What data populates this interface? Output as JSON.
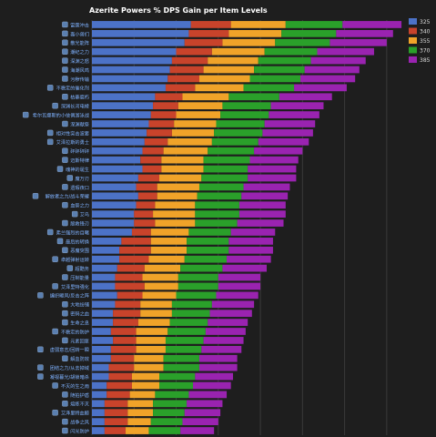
{
  "chart_data": {
    "type": "bar",
    "orientation": "horizontal",
    "stacked": true,
    "title": "Azerite Powers % DPS Gain per Item Levels",
    "xlabel": "",
    "ylabel": "",
    "grid": true,
    "legend_position": "top-right",
    "xlim": [
      0,
      7.5
    ],
    "categories": [
      "雷霆冲击",
      "轰小兽们",
      "散光能阵",
      "潮纪之力",
      "深渊之怒",
      "海潮风鸣",
      "污秽传输",
      "不稳定的催化剂",
      "枯萎腐朽",
      "深渊长河电棱",
      "希尔瓦娜斯的小伎俩游泳战",
      "深渊献祭",
      "相对性突击波套",
      "艾泽拉斯的勇士",
      "砰砰砰砰",
      "迈斯特律",
      "魂神的诞生",
      "魔万刃",
      "遗瑕夜口",
      "解放者之力/战斗荣耀",
      "血祭之力",
      "艾鸟",
      "殷救锋刃",
      "弗兰强烈的目睹",
      "最后的转换",
      "恶魔突围",
      "卓越弹射运转",
      "超酷务",
      "压制能量",
      "艾泽里特强化",
      "编织暖风/反击之阵",
      "大地纷铺",
      "密码之血",
      "生命之息",
      "不稳定的防护",
      "元素回复",
      "虚弱意志/回转一瞬",
      "解血防效",
      "团结之力/从去掉域",
      "凝视暮光/胡锁暗杀",
      "不灭的生之雨",
      "随拍护盾",
      "熔炼不灭",
      "艾泽里特血鲸",
      "战争之风",
      "闪光防护"
    ],
    "series": [
      {
        "name": "325",
        "color": "#4c72c7",
        "values": [
          2.35,
          2.3,
          2.2,
          2.0,
          1.9,
          1.85,
          1.8,
          1.75,
          1.5,
          1.45,
          1.4,
          1.35,
          1.3,
          1.25,
          1.2,
          1.15,
          1.2,
          1.1,
          1.05,
          1.1,
          1.05,
          1.0,
          1.0,
          0.95,
          0.7,
          0.65,
          0.65,
          0.6,
          0.55,
          0.55,
          0.6,
          0.55,
          0.5,
          0.5,
          0.45,
          0.5,
          0.45,
          0.45,
          0.4,
          0.4,
          0.35,
          0.35,
          0.3,
          0.3,
          0.3,
          0.3
        ]
      },
      {
        "name": "340",
        "color": "#c8432b",
        "values": [
          0.95,
          0.95,
          0.9,
          0.85,
          0.85,
          0.8,
          0.75,
          0.7,
          0.65,
          0.6,
          0.6,
          0.6,
          0.6,
          0.55,
          0.5,
          0.5,
          0.45,
          0.5,
          0.5,
          0.45,
          0.45,
          0.45,
          0.5,
          0.45,
          0.7,
          0.75,
          0.7,
          0.65,
          0.65,
          0.7,
          0.6,
          0.6,
          0.65,
          0.6,
          0.6,
          0.55,
          0.6,
          0.55,
          0.6,
          0.55,
          0.6,
          0.55,
          0.55,
          0.55,
          0.55,
          0.5
        ]
      },
      {
        "name": "355",
        "color": "#f0a329",
        "values": [
          1.3,
          1.25,
          1.25,
          1.25,
          1.2,
          1.2,
          1.2,
          1.15,
          1.1,
          1.05,
          1.05,
          1.0,
          1.0,
          1.05,
          1.05,
          1.0,
          1.0,
          1.0,
          1.0,
          0.95,
          0.95,
          1.0,
          0.95,
          0.9,
          0.85,
          0.85,
          0.85,
          0.85,
          0.85,
          0.8,
          0.8,
          0.75,
          0.75,
          0.75,
          0.75,
          0.7,
          0.7,
          0.7,
          0.7,
          0.65,
          0.65,
          0.6,
          0.6,
          0.6,
          0.55,
          0.55
        ]
      },
      {
        "name": "370",
        "color": "#2aa02a",
        "values": [
          1.35,
          1.3,
          1.3,
          1.25,
          1.25,
          1.2,
          1.2,
          1.2,
          1.2,
          1.15,
          1.15,
          1.15,
          1.15,
          1.1,
          1.1,
          1.1,
          1.05,
          1.1,
          1.05,
          1.05,
          1.05,
          1.05,
          1.0,
          1.0,
          1.0,
          1.0,
          1.0,
          1.0,
          0.95,
          0.95,
          0.95,
          0.95,
          0.9,
          0.9,
          0.9,
          0.9,
          0.85,
          0.85,
          0.85,
          0.85,
          0.8,
          0.8,
          0.8,
          0.75,
          0.75,
          0.75
        ]
      },
      {
        "name": "385",
        "color": "#9a23b0",
        "values": [
          1.4,
          1.35,
          1.35,
          1.35,
          1.3,
          1.3,
          1.3,
          1.25,
          1.25,
          1.25,
          1.2,
          1.2,
          1.2,
          1.2,
          1.15,
          1.15,
          1.15,
          1.15,
          1.1,
          1.1,
          1.1,
          1.1,
          1.1,
          1.05,
          1.05,
          1.05,
          1.05,
          1.05,
          1.0,
          1.0,
          1.0,
          1.0,
          1.0,
          0.95,
          0.95,
          0.95,
          0.95,
          0.9,
          0.9,
          0.9,
          0.9,
          0.9,
          0.85,
          0.85,
          0.85,
          0.8
        ]
      }
    ]
  }
}
